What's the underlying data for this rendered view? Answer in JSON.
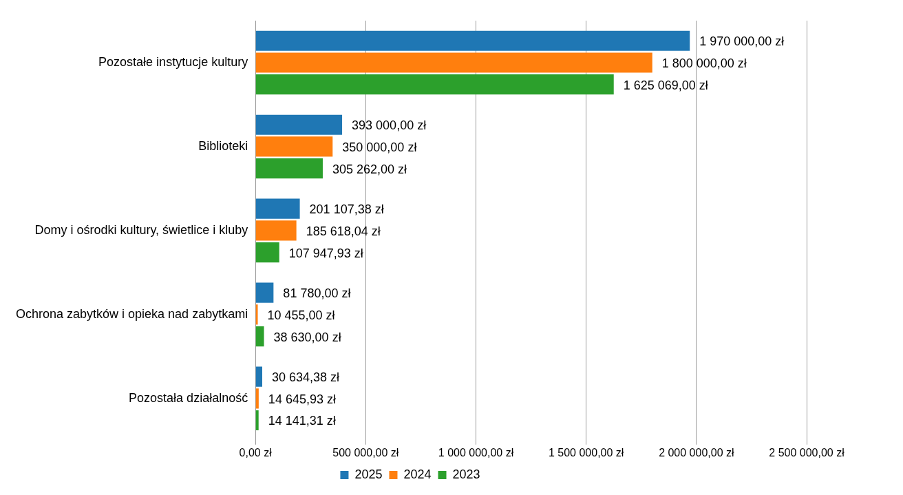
{
  "chart_data": {
    "type": "bar",
    "orientation": "horizontal",
    "categories": [
      "Pozostałe instytucje kultury",
      "Biblioteki",
      "Domy i ośrodki kultury, świetlice i kluby",
      "Ochrona zabytków i opieka nad zabytkami",
      "Pozostała działalność"
    ],
    "series": [
      {
        "name": "2025",
        "color": "#1f77b4",
        "values": [
          1970000,
          393000,
          201107.38,
          81780,
          30634.38
        ],
        "value_labels": [
          "1 970 000,00 zł",
          "393 000,00 zł",
          "201 107,38 zł",
          "81 780,00 zł",
          "30 634,38 zł"
        ]
      },
      {
        "name": "2024",
        "color": "#ff7f0e",
        "values": [
          1800000,
          350000,
          185618.04,
          10455,
          14645.93
        ],
        "value_labels": [
          "1 800 000,00 zł",
          "350 000,00 zł",
          "185 618,04 zł",
          "10 455,00 zł",
          "14 645,93 zł"
        ]
      },
      {
        "name": "2023",
        "color": "#2ca02c",
        "values": [
          1625069,
          305262,
          107947.93,
          38630,
          14141.31
        ],
        "value_labels": [
          "1 625 069,00 zł",
          "305 262,00 zł",
          "107 947,93 zł",
          "38 630,00 zł",
          "14 141,31 zł"
        ]
      }
    ],
    "xlim": [
      0,
      2500000
    ],
    "xticks": [
      {
        "value": 0,
        "label": "0,00 zł"
      },
      {
        "value": 500000,
        "label": "500 000,00 zł"
      },
      {
        "value": 1000000,
        "label": "1 000 000,00 zł"
      },
      {
        "value": 1500000,
        "label": "1 500 000,00 zł"
      },
      {
        "value": 2000000,
        "label": "2 000 000,00 zł"
      },
      {
        "value": 2500000,
        "label": "2 500 000,00 zł"
      }
    ],
    "grid": "x",
    "legend": "bottom"
  }
}
